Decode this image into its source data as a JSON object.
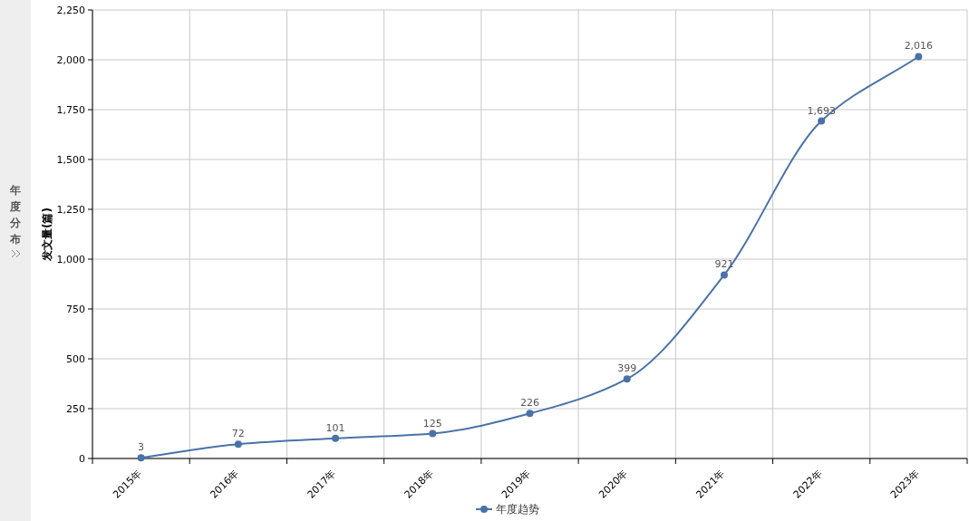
{
  "chart_data": {
    "type": "line",
    "categories": [
      "2015年",
      "2016年",
      "2017年",
      "2018年",
      "2019年",
      "2020年",
      "2021年",
      "2022年",
      "2023年"
    ],
    "series": [
      {
        "name": "年度趋势",
        "color": "#4a72a8",
        "values": [
          3,
          72,
          101,
          125,
          226,
          399,
          921,
          1693,
          2016
        ]
      }
    ],
    "ylabel": "发文量(篇)",
    "ylim": [
      0,
      2250
    ],
    "yticks": [
      {
        "value": 0,
        "label": "0"
      },
      {
        "value": 250,
        "label": "250"
      },
      {
        "value": 500,
        "label": "500"
      },
      {
        "value": 750,
        "label": "750"
      },
      {
        "value": 1000,
        "label": "1,000"
      },
      {
        "value": 1250,
        "label": "1,250"
      },
      {
        "value": 1500,
        "label": "1,500"
      },
      {
        "value": 1750,
        "label": "1,750"
      },
      {
        "value": 2000,
        "label": "2,000"
      },
      {
        "value": 2250,
        "label": "2,250"
      }
    ],
    "value_labels": [
      "3",
      "72",
      "101",
      "125",
      "226",
      "399",
      "921",
      "1,693",
      "2,016"
    ],
    "grid": true,
    "legend": "bottom",
    "marker": "circle",
    "line_style": "solid",
    "annotations": [
      "年度分布"
    ]
  }
}
